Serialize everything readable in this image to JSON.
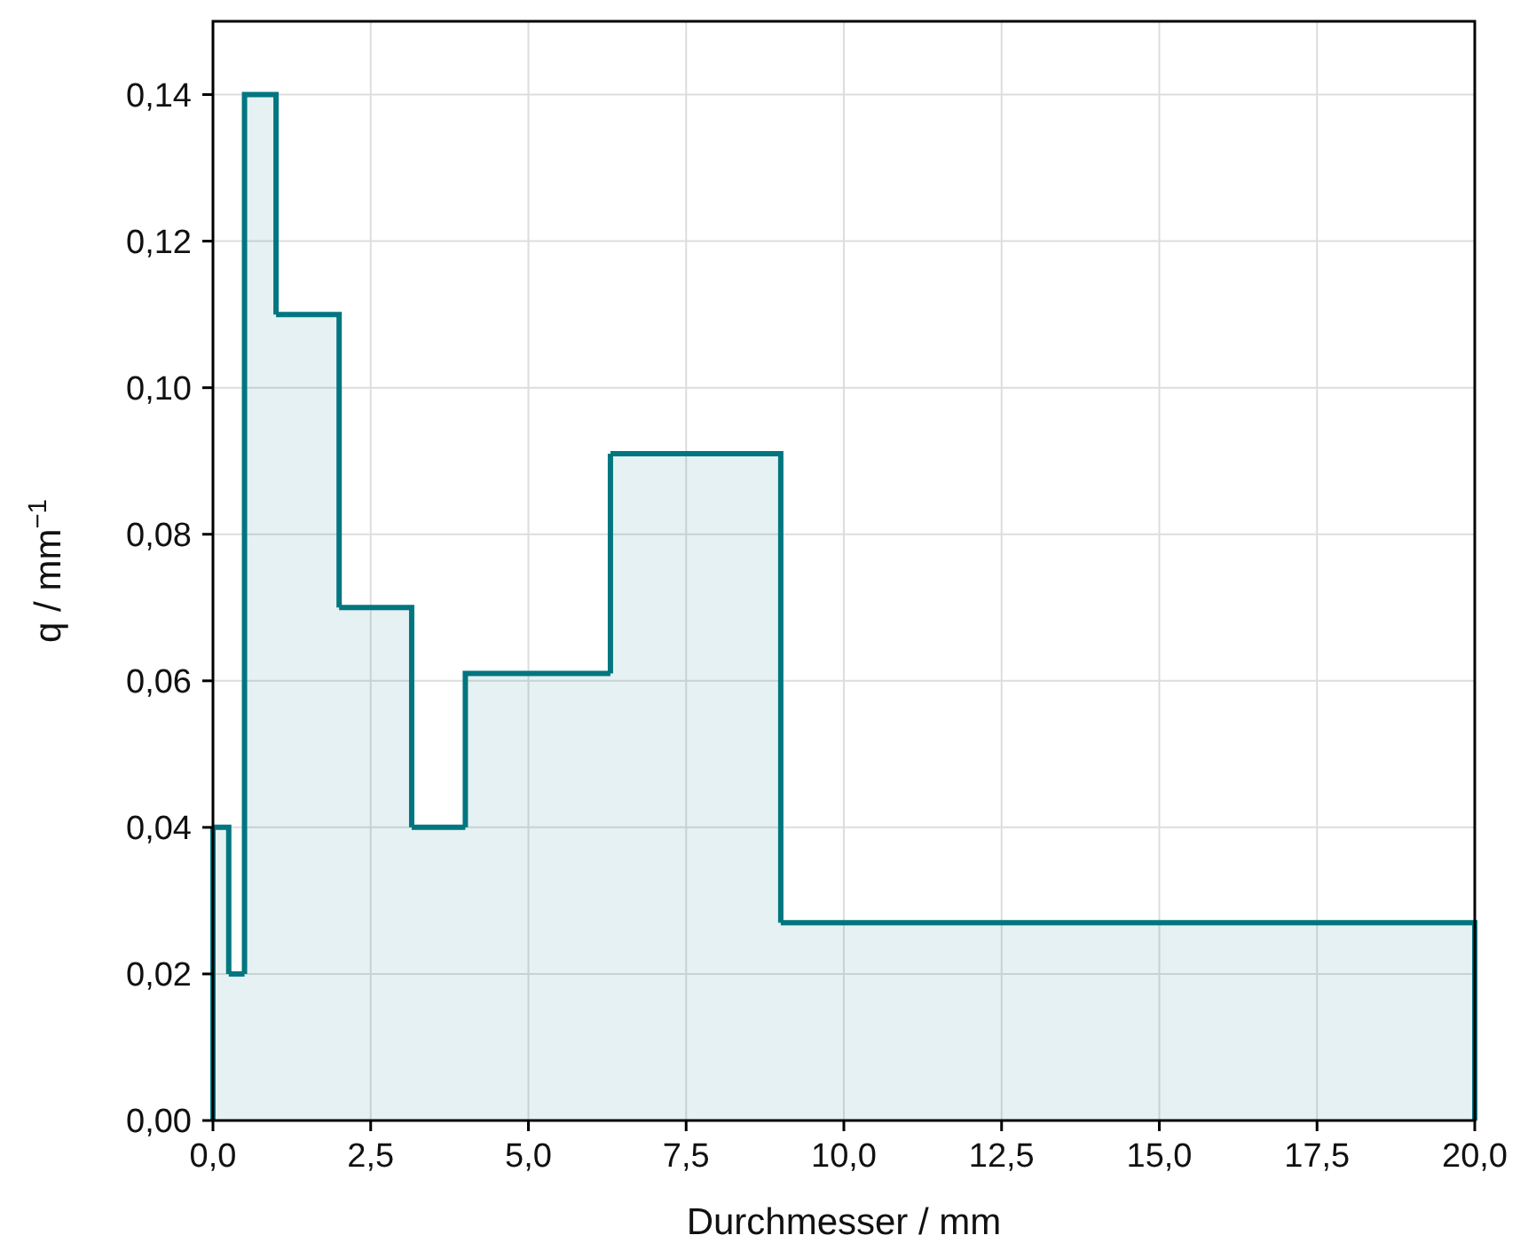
{
  "chart_data": {
    "type": "histogram",
    "xlabel": "Durchmesser / mm",
    "ylabel": "q / mm$^{−1}$",
    "bins": [
      0,
      0.25,
      0.5,
      1,
      2,
      3.15,
      4,
      6.3,
      9,
      20
    ],
    "values": [
      0.04,
      0.02,
      0.14,
      0.11,
      0.07,
      0.04,
      0.061,
      0.091,
      0.027
    ],
    "color": "#007680",
    "xlim": [
      0,
      20
    ],
    "ylim": [
      0,
      0.15
    ],
    "xticks": [
      {
        "value": 0,
        "label": "0,0"
      },
      {
        "value": 2.5,
        "label": "2,5"
      },
      {
        "value": 5,
        "label": "5,0"
      },
      {
        "value": 7.5,
        "label": "7,5"
      },
      {
        "value": 10,
        "label": "10,0"
      },
      {
        "value": 12.5,
        "label": "12,5"
      },
      {
        "value": 15,
        "label": "15,0"
      },
      {
        "value": 17.5,
        "label": "17,5"
      },
      {
        "value": 20,
        "label": "20,0"
      }
    ],
    "yticks": [
      {
        "value": 0,
        "label": "0,00"
      },
      {
        "value": 0.02,
        "label": "0,02"
      },
      {
        "value": 0.04,
        "label": "0,04"
      },
      {
        "value": 0.06,
        "label": "0,06"
      },
      {
        "value": 0.08,
        "label": "0,08"
      },
      {
        "value": 0.1,
        "label": "0,10"
      },
      {
        "value": 0.12,
        "label": "0,12"
      },
      {
        "value": 0.14,
        "label": "0,14"
      }
    ],
    "grid": true
  }
}
